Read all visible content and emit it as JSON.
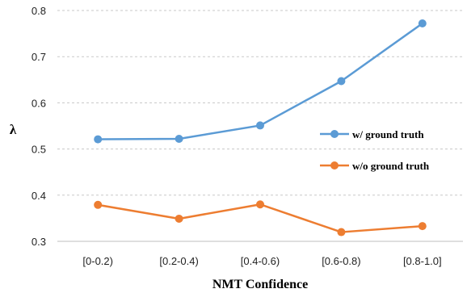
{
  "chart_data": {
    "type": "line",
    "categories": [
      "[0-0.2)",
      "[0.2-0.4)",
      "[0.4-0.6)",
      "[0.6-0.8)",
      "[0.8-1.0]"
    ],
    "series": [
      {
        "name": "w/ ground truth",
        "values": [
          0.521,
          0.522,
          0.551,
          0.647,
          0.772
        ],
        "color": "#5B9BD5"
      },
      {
        "name": "w/o ground truth",
        "values": [
          0.379,
          0.349,
          0.38,
          0.32,
          0.333
        ],
        "color": "#ED7D31"
      }
    ],
    "xlabel": "NMT Confidence",
    "ylabel": "λ",
    "ylim": [
      0.3,
      0.8
    ],
    "yticks": [
      "0.3",
      "0.4",
      "0.5",
      "0.6",
      "0.7",
      "0.8"
    ],
    "grid": "horizontal-dashed",
    "legend_position": "right"
  }
}
